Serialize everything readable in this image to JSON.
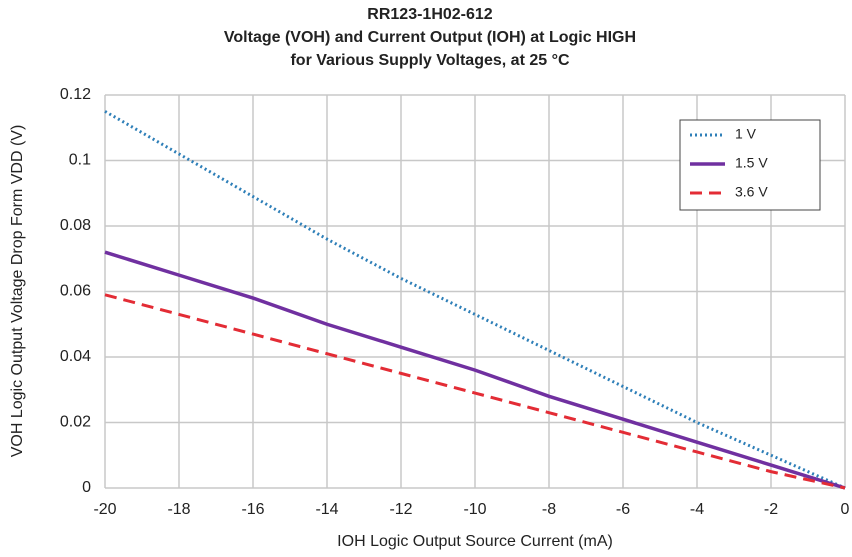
{
  "chart_data": {
    "type": "line",
    "title": [
      "RR123-1H02-612",
      "Voltage (VOH) and Current Output (IOH) at Logic HIGH",
      "for Various Supply Voltages, at 25 °C"
    ],
    "x_label": "IOH Logic Output Source Current (mA)",
    "y_label": "VOH Logic Output Voltage Drop Form VDD (V)",
    "x": [
      -20,
      -18,
      -16,
      -14,
      -12,
      -10,
      -8,
      -6,
      -4,
      -2,
      0
    ],
    "series": [
      {
        "name": "1 V",
        "color": "#2e7fb8",
        "dash": "dotted",
        "values": [
          0.115,
          0.102,
          0.089,
          0.076,
          0.064,
          0.053,
          0.042,
          0.031,
          0.02,
          0.01,
          0
        ]
      },
      {
        "name": "1.5 V",
        "color": "#7030a0",
        "dash": "solid",
        "values": [
          0.072,
          0.065,
          0.058,
          0.05,
          0.043,
          0.036,
          0.028,
          0.021,
          0.014,
          0.007,
          0
        ]
      },
      {
        "name": "3.6 V",
        "color": "#e32c35",
        "dash": "dashed",
        "values": [
          0.059,
          0.053,
          0.047,
          0.041,
          0.035,
          0.029,
          0.023,
          0.017,
          0.011,
          0.005,
          0
        ]
      }
    ],
    "xlim": [
      -20,
      0
    ],
    "xticks": [
      -20,
      -18,
      -16,
      -14,
      -12,
      -10,
      -8,
      -6,
      -4,
      -2,
      0
    ],
    "ylim": [
      0,
      0.12
    ],
    "yticks": [
      0,
      0.02,
      0.04,
      0.06,
      0.08,
      0.1,
      0.12
    ],
    "grid": true,
    "legend": "top-right"
  }
}
